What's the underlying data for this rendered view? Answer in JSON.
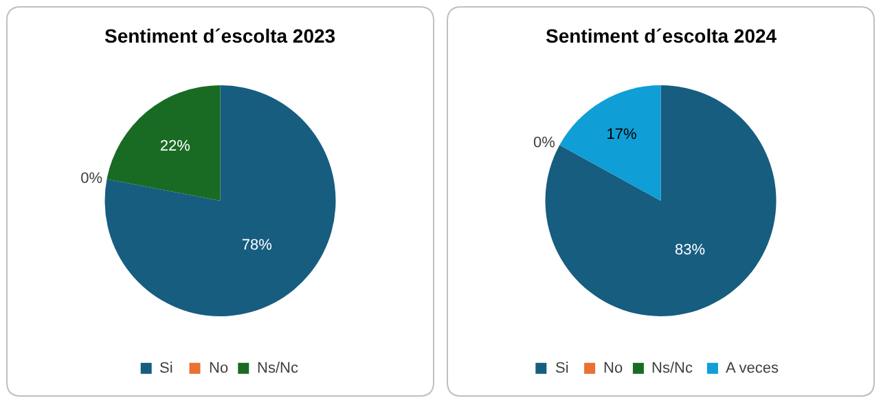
{
  "chart_data": [
    {
      "type": "pie",
      "title": "Sentiment d´escolta 2023",
      "categories": [
        "Si",
        "No",
        "Ns/Nc"
      ],
      "values": [
        78,
        0,
        22
      ],
      "colors": [
        "#175d80",
        "#e97132",
        "#196b24"
      ],
      "value_labels": [
        "78%",
        "0%",
        "22%"
      ],
      "legend": "bottom"
    },
    {
      "type": "pie",
      "title": "Sentiment d´escolta 2024",
      "categories": [
        "Si",
        "No",
        "Ns/Nc",
        "A veces"
      ],
      "values": [
        83,
        0,
        0,
        17
      ],
      "colors": [
        "#175d80",
        "#e97132",
        "#196b24",
        "#0f9ed5"
      ],
      "value_labels": [
        "83%",
        "0%",
        null,
        "17%"
      ],
      "legend": "bottom"
    }
  ]
}
